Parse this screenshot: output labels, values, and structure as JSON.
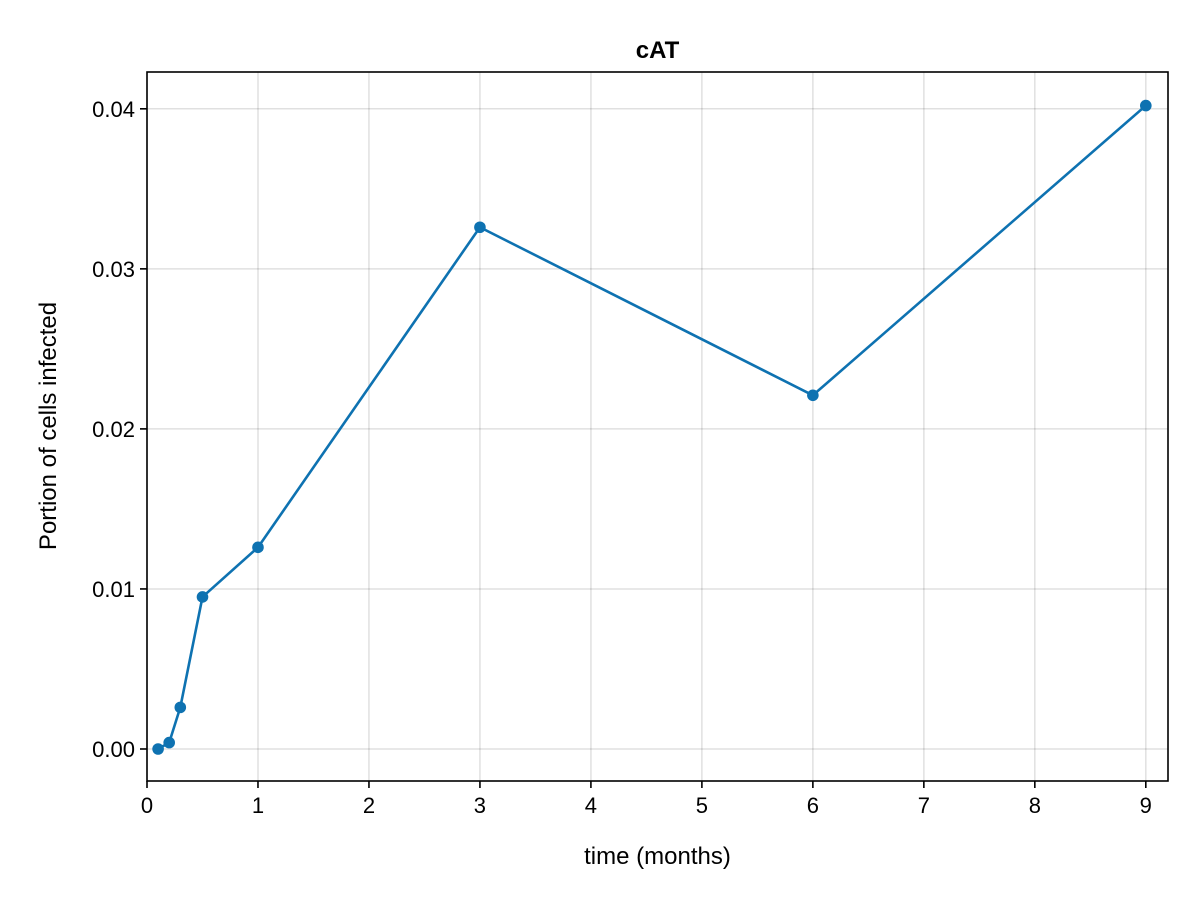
{
  "chart_data": {
    "type": "line",
    "title": "cAT",
    "xlabel": "time (months)",
    "ylabel": "Portion of cells infected",
    "xlim": [
      0,
      9.2
    ],
    "ylim": [
      -0.002,
      0.0423
    ],
    "xticks": [
      0,
      1,
      2,
      3,
      4,
      5,
      6,
      7,
      8,
      9
    ],
    "xtick_labels": [
      "0",
      "1",
      "2",
      "3",
      "4",
      "5",
      "6",
      "7",
      "8",
      "9"
    ],
    "yticks": [
      0.0,
      0.01,
      0.02,
      0.03,
      0.04
    ],
    "ytick_labels": [
      "0.00",
      "0.01",
      "0.02",
      "0.03",
      "0.04"
    ],
    "grid": true,
    "markers": true,
    "color": "#0e72b1",
    "series": [
      {
        "x": [
          0.1,
          0.2,
          0.3,
          0.5,
          1,
          3,
          6,
          9
        ],
        "y": [
          0.0,
          0.0004,
          0.0026,
          0.0095,
          0.0126,
          0.0326,
          0.0221,
          0.0402
        ]
      }
    ]
  }
}
